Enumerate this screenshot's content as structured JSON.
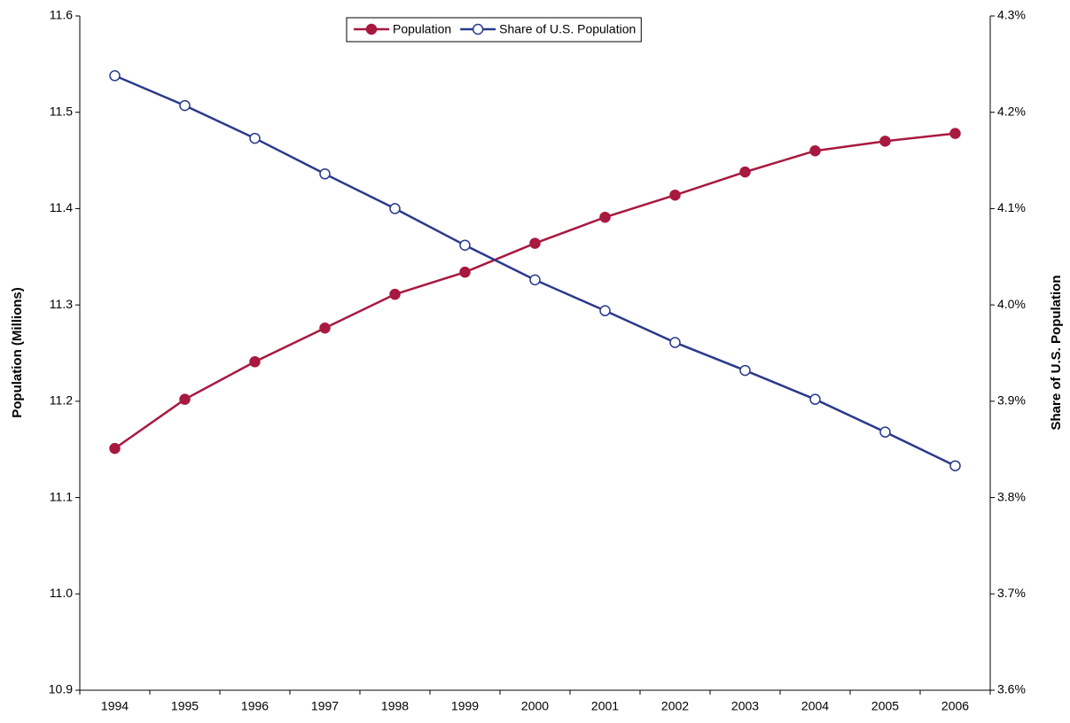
{
  "chart_data": {
    "type": "line",
    "y_label": "Population (Millions)",
    "y2_label": "Share of U.S. Population",
    "categories": [
      "1994",
      "1995",
      "1996",
      "1997",
      "1998",
      "1999",
      "2000",
      "2001",
      "2002",
      "2003",
      "2004",
      "2005",
      "2006"
    ],
    "series": [
      {
        "name": "Population",
        "color": "#a8193f",
        "marker": "filled",
        "values": [
          11.151,
          11.202,
          11.241,
          11.276,
          11.311,
          11.334,
          11.364,
          11.391,
          11.414,
          11.438,
          11.46,
          11.47,
          11.478
        ]
      },
      {
        "name": "Share of U.S. Population",
        "color": "#2a3a8c",
        "marker": "open",
        "axis": "y2",
        "values": [
          4.238,
          4.207,
          4.173,
          4.136,
          4.1,
          4.062,
          4.026,
          3.994,
          3.961,
          3.932,
          3.902,
          3.868,
          3.833
        ]
      }
    ],
    "ylim": [
      10.9,
      11.6
    ],
    "yticks": [
      10.9,
      {
        "value": 11,
        "label": "11.0"
      },
      11.1,
      11.2,
      11.3,
      11.4,
      11.5,
      11.6
    ],
    "y2lim": [
      3.6,
      4.3
    ],
    "y2ticks": [
      {
        "value": 3.6,
        "label": "3.6%"
      },
      {
        "value": 3.7,
        "label": "3.7%"
      },
      {
        "value": 3.8,
        "label": "3.8%"
      },
      {
        "value": 3.9,
        "label": "3.9%"
      },
      {
        "value": 4.0,
        "label": "4.0%"
      },
      {
        "value": 4.1,
        "label": "4.1%"
      },
      {
        "value": 4.2,
        "label": "4.2%"
      },
      {
        "value": 4.3,
        "label": "4.3%"
      }
    ],
    "grid": false,
    "legend": "top"
  }
}
